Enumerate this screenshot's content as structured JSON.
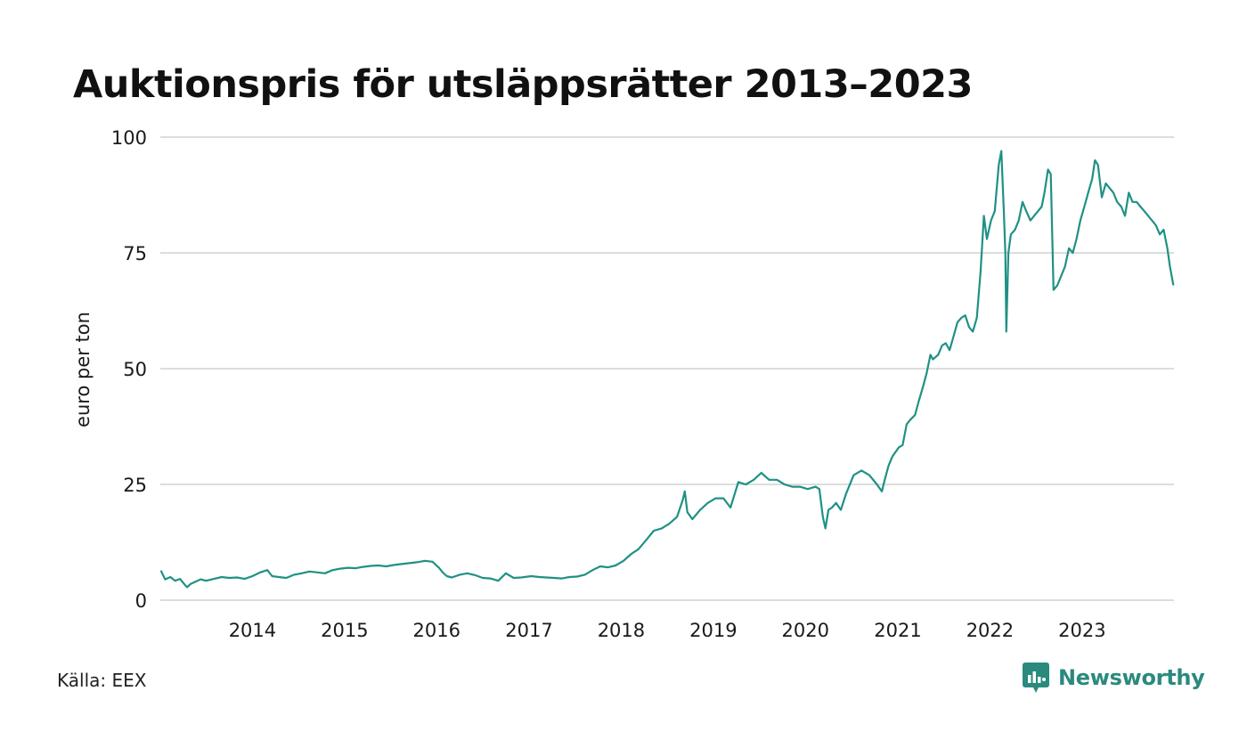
{
  "title": "Auktionspris för utsläppsrätter 2013–2023",
  "source": "Källa: EEX",
  "brand": {
    "name": "Newsworthy",
    "icon": "newsworthy-logo-icon",
    "color": "#2a8a7d"
  },
  "colors": {
    "line": "#1f9184",
    "grid": "#dddddd",
    "text": "#1a1a1a"
  },
  "chart_data": {
    "type": "line",
    "title": "Auktionspris för utsläppsrätter 2013–2023",
    "xlabel": "",
    "ylabel": "euro per ton",
    "ylim": [
      0,
      100
    ],
    "yticks": [
      0,
      25,
      50,
      75,
      100
    ],
    "xlim": [
      "2013-01-01",
      "2023-12-31"
    ],
    "xtick_labels": [
      "2014",
      "2015",
      "2016",
      "2017",
      "2018",
      "2019",
      "2020",
      "2021",
      "2022",
      "2023"
    ],
    "grid": true,
    "legend": "none",
    "series": [
      {
        "x": [
          "2013-01-03",
          "2013-01-20",
          "2013-02-10",
          "2013-03-01",
          "2013-03-20",
          "2013-04-10",
          "2013-04-17",
          "2013-05-01",
          "2013-05-20",
          "2013-06-10",
          "2013-07-01",
          "2013-08-01",
          "2013-09-01",
          "2013-10-01",
          "2013-11-01",
          "2013-12-01",
          "2014-01-01",
          "2014-02-01",
          "2014-03-01",
          "2014-03-20",
          "2014-04-15",
          "2014-05-15",
          "2014-06-15",
          "2014-07-15",
          "2014-08-15",
          "2014-09-15",
          "2014-10-15",
          "2014-11-15",
          "2014-12-15",
          "2015-01-15",
          "2015-02-15",
          "2015-03-15",
          "2015-04-15",
          "2015-05-15",
          "2015-06-15",
          "2015-07-15",
          "2015-08-15",
          "2015-09-15",
          "2015-10-15",
          "2015-11-15",
          "2015-12-15",
          "2016-01-10",
          "2016-01-25",
          "2016-02-10",
          "2016-03-01",
          "2016-04-01",
          "2016-05-01",
          "2016-06-01",
          "2016-07-01",
          "2016-08-01",
          "2016-09-01",
          "2016-10-01",
          "2016-11-01",
          "2016-12-01",
          "2017-01-10",
          "2017-02-10",
          "2017-03-10",
          "2017-04-10",
          "2017-05-10",
          "2017-06-10",
          "2017-07-10",
          "2017-08-10",
          "2017-09-10",
          "2017-10-10",
          "2017-11-10",
          "2017-12-10",
          "2018-01-10",
          "2018-02-10",
          "2018-03-10",
          "2018-04-10",
          "2018-05-10",
          "2018-06-10",
          "2018-07-10",
          "2018-08-10",
          "2018-09-01",
          "2018-09-10",
          "2018-09-20",
          "2018-10-10",
          "2018-11-10",
          "2018-12-10",
          "2019-01-10",
          "2019-02-10",
          "2019-03-10",
          "2019-04-10",
          "2019-05-10",
          "2019-06-10",
          "2019-07-10",
          "2019-08-10",
          "2019-09-10",
          "2019-10-10",
          "2019-11-10",
          "2019-12-10",
          "2020-01-10",
          "2020-02-10",
          "2020-02-25",
          "2020-03-10",
          "2020-03-20",
          "2020-04-01",
          "2020-04-15",
          "2020-05-01",
          "2020-05-20",
          "2020-06-10",
          "2020-07-10",
          "2020-08-10",
          "2020-09-10",
          "2020-10-10",
          "2020-10-30",
          "2020-11-10",
          "2020-11-25",
          "2020-12-10",
          "2021-01-05",
          "2021-01-20",
          "2021-02-05",
          "2021-02-20",
          "2021-03-10",
          "2021-03-25",
          "2021-04-10",
          "2021-04-25",
          "2021-05-10",
          "2021-05-20",
          "2021-06-10",
          "2021-06-25",
          "2021-07-10",
          "2021-07-25",
          "2021-08-10",
          "2021-08-25",
          "2021-09-10",
          "2021-09-25",
          "2021-10-10",
          "2021-10-25",
          "2021-11-10",
          "2021-11-25",
          "2021-12-08",
          "2021-12-20",
          "2022-01-05",
          "2022-01-20",
          "2022-02-05",
          "2022-02-15",
          "2022-02-25",
          "2022-03-03",
          "2022-03-07",
          "2022-03-15",
          "2022-03-25",
          "2022-04-10",
          "2022-04-25",
          "2022-05-10",
          "2022-05-25",
          "2022-06-10",
          "2022-06-25",
          "2022-07-10",
          "2022-07-25",
          "2022-08-05",
          "2022-08-19",
          "2022-08-30",
          "2022-09-10",
          "2022-09-25",
          "2022-10-10",
          "2022-10-25",
          "2022-11-10",
          "2022-11-25",
          "2022-12-10",
          "2022-12-25",
          "2023-01-10",
          "2023-01-25",
          "2023-02-10",
          "2023-02-21",
          "2023-03-05",
          "2023-03-20",
          "2023-04-05",
          "2023-04-20",
          "2023-05-05",
          "2023-05-20",
          "2023-06-05",
          "2023-06-20",
          "2023-07-05",
          "2023-07-20",
          "2023-08-05",
          "2023-08-20",
          "2023-09-05",
          "2023-09-20",
          "2023-10-05",
          "2023-10-20",
          "2023-11-05",
          "2023-11-20",
          "2023-12-05",
          "2023-12-15",
          "2023-12-29"
        ],
        "values": [
          6.4,
          4.5,
          5.0,
          4.2,
          4.6,
          3.2,
          2.8,
          3.5,
          4.0,
          4.5,
          4.2,
          4.6,
          5.0,
          4.8,
          4.9,
          4.6,
          5.2,
          6.0,
          6.5,
          5.2,
          5.0,
          4.8,
          5.5,
          5.8,
          6.2,
          6.0,
          5.8,
          6.5,
          6.8,
          7.0,
          6.9,
          7.2,
          7.4,
          7.5,
          7.3,
          7.6,
          7.8,
          8.0,
          8.2,
          8.5,
          8.3,
          7.0,
          6.0,
          5.2,
          4.9,
          5.5,
          5.8,
          5.4,
          4.8,
          4.7,
          4.2,
          5.8,
          4.8,
          4.9,
          5.2,
          5.0,
          4.9,
          4.8,
          4.7,
          5.0,
          5.1,
          5.5,
          6.5,
          7.3,
          7.1,
          7.5,
          8.5,
          10.0,
          11.0,
          13.0,
          15.0,
          15.5,
          16.5,
          18.0,
          21.5,
          23.5,
          19.0,
          17.5,
          19.5,
          21.0,
          22.0,
          22.0,
          20.0,
          25.5,
          25.0,
          26.0,
          27.5,
          26.0,
          26.0,
          25.0,
          24.5,
          24.5,
          24.0,
          24.5,
          24.0,
          18.0,
          15.5,
          19.5,
          20.0,
          21.0,
          19.5,
          23.0,
          27.0,
          28.0,
          27.0,
          25.0,
          23.5,
          26.0,
          29.0,
          31.0,
          33.0,
          33.5,
          38.0,
          39.0,
          40.0,
          43.0,
          46.0,
          49.0,
          53.0,
          52.0,
          53.0,
          55.0,
          55.5,
          54.0,
          57.0,
          60.0,
          61.0,
          61.5,
          59.0,
          58.0,
          61.0,
          71.0,
          83.0,
          78.0,
          82.0,
          84.0,
          94.0,
          97.0,
          84.0,
          75.0,
          58.0,
          75.0,
          79.0,
          80.0,
          82.0,
          86.0,
          84.0,
          82.0,
          83.0,
          84.0,
          85.0,
          88.0,
          93.0,
          92.0,
          67.0,
          68.0,
          70.0,
          72.0,
          76.0,
          75.0,
          78.0,
          82.0,
          85.0,
          88.0,
          91.0,
          95.0,
          94.0,
          87.0,
          90.0,
          89.0,
          88.0,
          86.0,
          85.0,
          83.0,
          88.0,
          86.0,
          86.0,
          85.0,
          84.0,
          83.0,
          82.0,
          81.0,
          79.0,
          80.0,
          76.0,
          72.0,
          68.0
        ]
      }
    ]
  }
}
